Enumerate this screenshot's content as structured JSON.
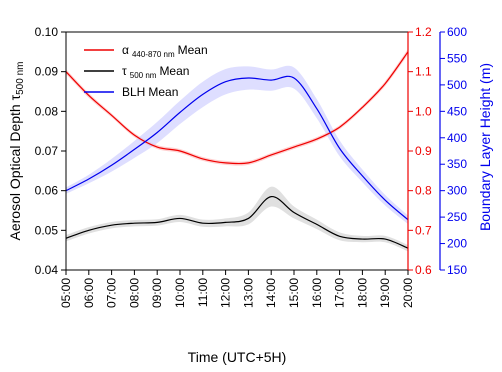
{
  "chart_data": {
    "type": "line",
    "xlabel": "Time (UTC+5H)",
    "ylabel_left": "Aerosol Optical Depth τ",
    "ylabel_left_sub": "500 nm",
    "ylabel_right_inner": "",
    "ylabel_right_outer": "Boundary Layer Height (m)",
    "x_ticks": [
      "05:00",
      "06:00",
      "07:00",
      "08:00",
      "09:00",
      "10:00",
      "11:00",
      "12:00",
      "13:00",
      "14:00",
      "15:00",
      "16:00",
      "17:00",
      "18:00",
      "19:00",
      "20:00"
    ],
    "xlim": [
      5,
      20
    ],
    "axes": {
      "left": {
        "ylim": [
          0.04,
          0.1
        ],
        "ticks": [
          "0.04",
          "0.05",
          "0.06",
          "0.07",
          "0.08",
          "0.09",
          "0.10"
        ],
        "color": "#000000"
      },
      "right_inner": {
        "ylim": [
          0.6,
          1.2
        ],
        "ticks": [
          "0.6",
          "0.7",
          "0.8",
          "0.9",
          "1.0",
          "1.1",
          "1.2"
        ],
        "color": "#ee0000"
      },
      "right_outer": {
        "ylim": [
          150,
          600
        ],
        "ticks": [
          "150",
          "200",
          "250",
          "300",
          "350",
          "400",
          "450",
          "500",
          "550",
          "600"
        ],
        "color": "#0000ee"
      }
    },
    "legend": {
      "placement": "top-left",
      "entries": [
        {
          "symbol": "α",
          "sub": "440-870 nm",
          "tail": "Mean",
          "color": "#ee0000"
        },
        {
          "symbol": "τ",
          "sub": "500 nm",
          "tail": "Mean",
          "color": "#000000"
        },
        {
          "symbol": "BLH",
          "sub": "",
          "tail": "Mean",
          "color": "#0000ee"
        }
      ]
    },
    "series": [
      {
        "name": "α 440-870 nm Mean",
        "axis": "right_inner",
        "color": "#ee0000",
        "band_color": "#ffb0b0",
        "x": [
          5,
          6,
          7,
          8,
          9,
          10,
          11,
          12,
          13,
          14,
          15,
          16,
          17,
          18,
          19,
          20
        ],
        "y": [
          1.1,
          1.04,
          0.99,
          0.94,
          0.91,
          0.9,
          0.88,
          0.87,
          0.87,
          0.89,
          0.91,
          0.93,
          0.96,
          1.01,
          1.07,
          1.15
        ],
        "band": [
          0.006,
          0.006,
          0.005,
          0.005,
          0.005,
          0.005,
          0.005,
          0.005,
          0.005,
          0.005,
          0.005,
          0.005,
          0.005,
          0.005,
          0.006,
          0.007
        ]
      },
      {
        "name": "τ 500 nm Mean",
        "axis": "left",
        "color": "#000000",
        "band_color": "#cccccc",
        "x": [
          5,
          6,
          7,
          8,
          9,
          10,
          11,
          12,
          13,
          14,
          15,
          16,
          17,
          18,
          19,
          20
        ],
        "y": [
          0.048,
          0.05,
          0.0513,
          0.0518,
          0.052,
          0.053,
          0.0518,
          0.052,
          0.053,
          0.0585,
          0.0545,
          0.0515,
          0.0485,
          0.0478,
          0.0478,
          0.0455
        ],
        "band": [
          0.0008,
          0.0008,
          0.0008,
          0.0008,
          0.0008,
          0.0009,
          0.0009,
          0.001,
          0.0015,
          0.0025,
          0.0015,
          0.0012,
          0.001,
          0.0008,
          0.0008,
          0.0008
        ]
      },
      {
        "name": "BLH Mean",
        "axis": "right_outer",
        "color": "#0000ee",
        "band_color": "#c8c8ff",
        "x": [
          5,
          6,
          7,
          8,
          9,
          10,
          11,
          12,
          13,
          14,
          15,
          16,
          17,
          18,
          19,
          20
        ],
        "y": [
          300,
          322,
          348,
          378,
          410,
          448,
          482,
          506,
          513,
          509,
          513,
          455,
          380,
          328,
          282,
          245
        ],
        "band": [
          6,
          8,
          12,
          16,
          20,
          22,
          24,
          24,
          22,
          20,
          20,
          18,
          15,
          12,
          10,
          8
        ]
      }
    ]
  }
}
